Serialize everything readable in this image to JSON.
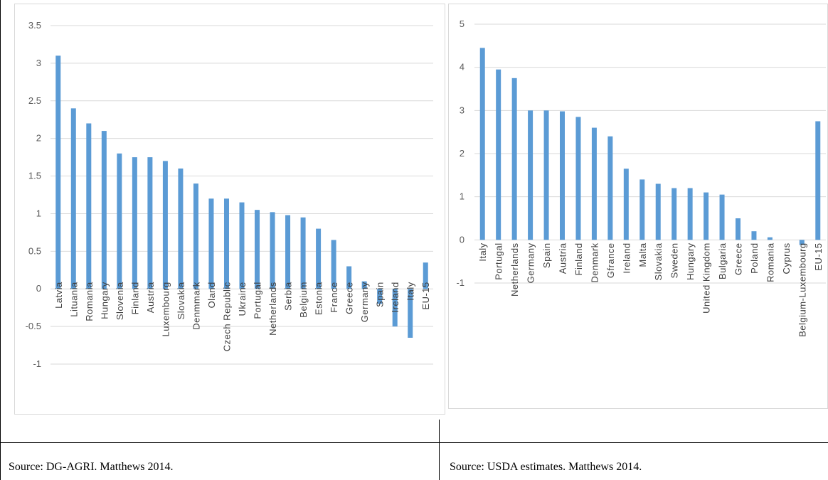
{
  "left": {
    "source": "Source: DG-AGRI. Matthews 2014.",
    "chart_data": {
      "type": "bar",
      "categories": [
        "Latvia",
        "Lituania",
        "Romania",
        "Hungary",
        "Slovenia",
        "Finland",
        "Austria",
        "Luxembourg",
        "Slovakia",
        "Denmmark",
        "Oland",
        "Czech Republic",
        "Ukraine",
        "Portugal",
        "Netherlands",
        "Serbia",
        "Belgium",
        "Estonia",
        "France",
        "Greece",
        "Germany",
        "Spain",
        "Ireland",
        "Italy",
        "EU-15"
      ],
      "values": [
        3.1,
        2.4,
        2.2,
        2.1,
        1.8,
        1.75,
        1.75,
        1.7,
        1.6,
        1.4,
        1.2,
        1.2,
        1.15,
        1.05,
        1.02,
        0.98,
        0.95,
        0.8,
        0.65,
        0.3,
        0.1,
        -0.2,
        -0.5,
        -0.65,
        0.35
      ],
      "yticks": [
        "3.5",
        "3",
        "2.5",
        "2",
        "1.5",
        "1",
        "0.5",
        "0",
        "-0.5",
        "-1"
      ],
      "ylim": [
        -1,
        3.5
      ],
      "grid": true,
      "bar_color": "#5b9bd5"
    }
  },
  "right": {
    "source": "Source: USDA estimates. Matthews 2014.",
    "chart_data": {
      "type": "bar",
      "categories": [
        "Italy",
        "Portugal",
        "Netherlands",
        "Germany",
        "Spain",
        "Austria",
        "Finland",
        "Denmark",
        "Gfrance",
        "Ireland",
        "Malta",
        "Slovakia",
        "Sweden",
        "Hungary",
        "United Kingdom",
        "Bulgaria",
        "Greece",
        "Poland",
        "Romania",
        "Cyprus",
        "Belgium-Luxembourg",
        "EU-15"
      ],
      "values": [
        4.45,
        3.95,
        3.75,
        3.0,
        3.0,
        2.98,
        2.85,
        2.6,
        2.4,
        1.65,
        1.4,
        1.3,
        1.2,
        1.2,
        1.1,
        1.05,
        0.5,
        0.2,
        0.06,
        0.0,
        -0.12,
        2.75
      ],
      "yticks": [
        "5",
        "4",
        "3",
        "2",
        "1",
        "0",
        "-1"
      ],
      "ylim": [
        -1,
        5
      ],
      "grid": true,
      "bar_color": "#5b9bd5"
    }
  }
}
